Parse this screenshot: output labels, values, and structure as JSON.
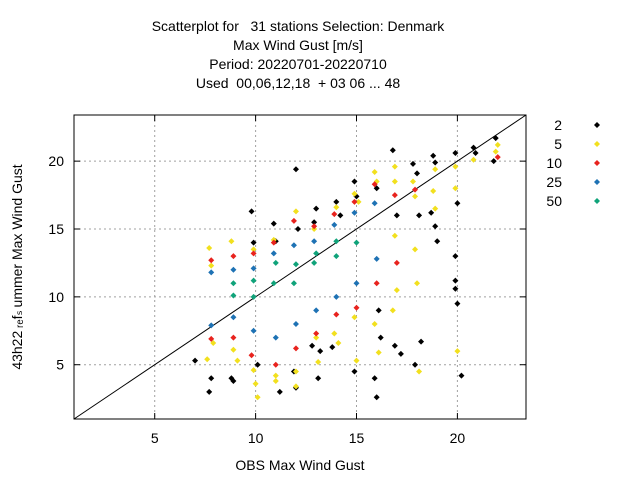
{
  "chart_data": {
    "type": "scatter",
    "title_lines": [
      "Scatterplot for   31 stations Selection: Denmark",
      "Max Wind Gust [m/s]",
      "Period: 20220701-20220710",
      "Used  00,06,12,18  + 03 06 ... 48"
    ],
    "xlabel": "OBS Max Wind Gust",
    "ylabel": "43h22 ᵣₑfₛ ummer Max Wind Gust",
    "xlim": [
      1,
      23.4
    ],
    "ylim": [
      1,
      23.4
    ],
    "xticks": [
      5,
      10,
      15,
      20
    ],
    "yticks": [
      5,
      10,
      15,
      20
    ],
    "grid": true,
    "diagonal_line": true,
    "legend_position": "right",
    "series": [
      {
        "name": "2",
        "color": "#000000",
        "points": [
          [
            7,
            5.3
          ],
          [
            7.7,
            3
          ],
          [
            7.8,
            4
          ],
          [
            8.8,
            4
          ],
          [
            8.9,
            3.8
          ],
          [
            9.8,
            16.3
          ],
          [
            9.9,
            14
          ],
          [
            10.1,
            5
          ],
          [
            10.9,
            15.4
          ],
          [
            11,
            14.1
          ],
          [
            11.2,
            3
          ],
          [
            11.9,
            4.5
          ],
          [
            12,
            19.4
          ],
          [
            12,
            3.3
          ],
          [
            12.1,
            15
          ],
          [
            12.8,
            6.4
          ],
          [
            12.9,
            15.5
          ],
          [
            13,
            16.5
          ],
          [
            13.1,
            4
          ],
          [
            13.2,
            6
          ],
          [
            13.8,
            6.3
          ],
          [
            14,
            17
          ],
          [
            14.2,
            16
          ],
          [
            14.9,
            18.5
          ],
          [
            15,
            17.4
          ],
          [
            14.9,
            4.5
          ],
          [
            15.9,
            4
          ],
          [
            16,
            18
          ],
          [
            16.1,
            9
          ],
          [
            16.2,
            7
          ],
          [
            16,
            2.6
          ],
          [
            16.8,
            20.8
          ],
          [
            17,
            16
          ],
          [
            16.9,
            6.4
          ],
          [
            17.2,
            5.8
          ],
          [
            17.8,
            19.8
          ],
          [
            18,
            19.1
          ],
          [
            18.2,
            6.7
          ],
          [
            17.9,
            5
          ],
          [
            18.1,
            16
          ],
          [
            18.7,
            16.2
          ],
          [
            18.8,
            20.4
          ],
          [
            19,
            14.1
          ],
          [
            18.9,
            19.9
          ],
          [
            18.9,
            15.2
          ],
          [
            19.9,
            20.6
          ],
          [
            20,
            16.9
          ],
          [
            19.9,
            13
          ],
          [
            19.9,
            11.2
          ],
          [
            19.9,
            10.6
          ],
          [
            20,
            9.5
          ],
          [
            20.2,
            4.2
          ],
          [
            20.8,
            21
          ],
          [
            20.9,
            20.6
          ],
          [
            21.9,
            21.7
          ],
          [
            21.8,
            20
          ]
        ]
      },
      {
        "name": "5",
        "color": "#f2e01e",
        "points": [
          [
            7.7,
            13.6
          ],
          [
            7.8,
            12.3
          ],
          [
            7.9,
            6.6
          ],
          [
            7.6,
            5.4
          ],
          [
            8.8,
            14.1
          ],
          [
            8.9,
            6.1
          ],
          [
            9.1,
            5.3
          ],
          [
            9.9,
            13.5
          ],
          [
            9.9,
            4.6
          ],
          [
            10,
            3.6
          ],
          [
            10.1,
            2.6
          ],
          [
            10.9,
            14.2
          ],
          [
            11,
            4.2
          ],
          [
            11,
            3.8
          ],
          [
            12,
            16.3
          ],
          [
            12,
            4.5
          ],
          [
            12,
            3.4
          ],
          [
            12.9,
            15
          ],
          [
            13,
            7
          ],
          [
            13.1,
            5.2
          ],
          [
            14,
            16.6
          ],
          [
            13.9,
            7.3
          ],
          [
            14.1,
            6.6
          ],
          [
            14.9,
            17.6
          ],
          [
            15.1,
            17
          ],
          [
            14.9,
            8.5
          ],
          [
            15,
            5.3
          ],
          [
            15.9,
            19.2
          ],
          [
            16,
            18.5
          ],
          [
            15.9,
            8
          ],
          [
            16.1,
            5.9
          ],
          [
            16.9,
            19.6
          ],
          [
            16.9,
            18.5
          ],
          [
            17,
            10.5
          ],
          [
            16.8,
            9
          ],
          [
            17.8,
            18.5
          ],
          [
            17.9,
            17.4
          ],
          [
            18,
            11
          ],
          [
            18.1,
            4.5
          ],
          [
            18.9,
            19.4
          ],
          [
            18.8,
            17.8
          ],
          [
            18.9,
            16.5
          ],
          [
            19.9,
            19.6
          ],
          [
            19.9,
            18
          ],
          [
            20,
            6
          ],
          [
            20.8,
            20.1
          ],
          [
            21.9,
            20.7
          ],
          [
            22,
            21.2
          ],
          [
            16.9,
            14.5
          ],
          [
            17.9,
            13.5
          ]
        ]
      },
      {
        "name": "10",
        "color": "#e8231e",
        "points": [
          [
            7.8,
            12.7
          ],
          [
            7.8,
            6.9
          ],
          [
            8.9,
            13
          ],
          [
            8.9,
            7
          ],
          [
            9.9,
            13.2
          ],
          [
            9.8,
            5.7
          ],
          [
            10.9,
            14
          ],
          [
            11,
            5
          ],
          [
            11.9,
            15.6
          ],
          [
            12,
            6.2
          ],
          [
            12.9,
            15.2
          ],
          [
            13,
            7.3
          ],
          [
            13.9,
            16.1
          ],
          [
            14,
            8.7
          ],
          [
            14.9,
            17
          ],
          [
            15,
            9.2
          ],
          [
            15.9,
            18.3
          ],
          [
            16,
            11
          ],
          [
            16.9,
            17.5
          ],
          [
            17,
            12.5
          ],
          [
            17.9,
            17.9
          ],
          [
            22,
            20.3
          ]
        ]
      },
      {
        "name": "25",
        "color": "#1e72b4",
        "points": [
          [
            7.8,
            11.8
          ],
          [
            7.8,
            7.9
          ],
          [
            8.9,
            12
          ],
          [
            8.9,
            8.5
          ],
          [
            9.9,
            12.1
          ],
          [
            9.9,
            7.5
          ],
          [
            10.9,
            13.2
          ],
          [
            11,
            7
          ],
          [
            11.9,
            13.8
          ],
          [
            12,
            8
          ],
          [
            12.9,
            14.1
          ],
          [
            13,
            9
          ],
          [
            13.9,
            15.3
          ],
          [
            14,
            10
          ],
          [
            14.9,
            16.2
          ],
          [
            15,
            11
          ],
          [
            15.9,
            16.9
          ],
          [
            16,
            12.8
          ]
        ]
      },
      {
        "name": "50",
        "color": "#10a37a",
        "points": [
          [
            8.9,
            10.1
          ],
          [
            8.9,
            11
          ],
          [
            9.9,
            10
          ],
          [
            9.9,
            11.2
          ],
          [
            10.9,
            11
          ],
          [
            11,
            12.5
          ],
          [
            11.9,
            11
          ],
          [
            12,
            12.4
          ],
          [
            12.9,
            12.5
          ],
          [
            13,
            13.2
          ],
          [
            14,
            13
          ],
          [
            14,
            14.1
          ],
          [
            15,
            14
          ]
        ]
      }
    ]
  }
}
